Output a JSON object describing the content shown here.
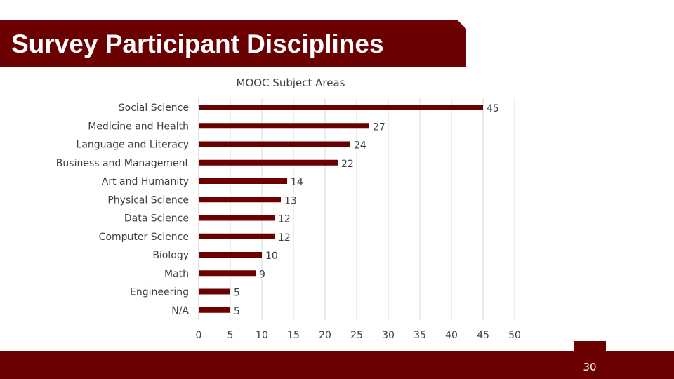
{
  "slide": {
    "title": "Survey Participant Disciplines",
    "page_number": "30"
  },
  "colors": {
    "brand": "#6b0000",
    "text": "#404040",
    "gridline": "#d9d9d9"
  },
  "chart_data": {
    "type": "bar",
    "orientation": "horizontal",
    "title": "MOOC Subject Areas",
    "xlabel": "",
    "ylabel": "",
    "categories": [
      "Social Science",
      "Medicine and Health",
      "Language and Literacy",
      "Business and Management",
      "Art and Humanity",
      "Physical Science",
      "Data Science",
      "Computer Science",
      "Biology",
      "Math",
      "Engineering",
      "N/A"
    ],
    "values": [
      45,
      27,
      24,
      22,
      14,
      13,
      12,
      12,
      10,
      9,
      5,
      5
    ],
    "xlim": [
      0,
      50
    ],
    "xticks": [
      0,
      5,
      10,
      15,
      20,
      25,
      30,
      35,
      40,
      45,
      50
    ],
    "grid": true,
    "legend": "none",
    "data_labels": true
  }
}
